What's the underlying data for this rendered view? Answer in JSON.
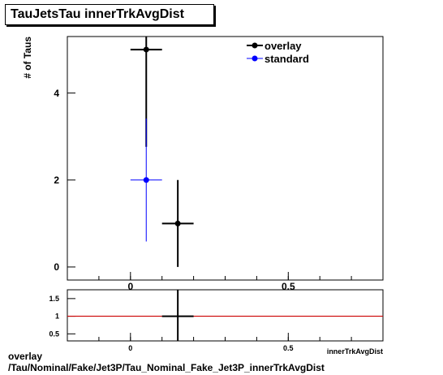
{
  "title": "TauJetsTau innerTrkAvgDist",
  "footer": {
    "line1": "overlay",
    "line2": "/Tau/Nominal/Fake/Jet3P/Tau_Nominal_Fake_Jet3P_innerTrkAvgDist"
  },
  "colors": {
    "overlay": "#000000",
    "standard": "#0000ff",
    "ratio_line": "#cc0000"
  },
  "chart_data": [
    {
      "type": "scatter",
      "title": "TauJetsTau innerTrkAvgDist",
      "xlabel": "innerTrkAvgDist",
      "ylabel": "# of Taus",
      "xlim": [
        -0.2,
        0.8
      ],
      "ylim": [
        -0.3,
        5.3
      ],
      "xticks": [
        {
          "v": 0,
          "label": "0"
        },
        {
          "v": 0.5,
          "label": "0.5"
        }
      ],
      "yticks": [
        {
          "v": 0,
          "label": "0"
        },
        {
          "v": 2,
          "label": "2"
        },
        {
          "v": 4,
          "label": "4"
        }
      ],
      "legend_placement": "top-right",
      "grid": false,
      "series": [
        {
          "name": "overlay",
          "color": "#000000",
          "points": [
            {
              "x": 0.05,
              "y": 5,
              "xerr": 0.05,
              "yerr": 2.236
            },
            {
              "x": 0.15,
              "y": 1,
              "xerr": 0.05,
              "yerr": 1.0
            }
          ]
        },
        {
          "name": "standard",
          "color": "#0000ff",
          "points": [
            {
              "x": 0.05,
              "y": 2,
              "xerr": 0.05,
              "yerr": 1.414
            }
          ]
        }
      ]
    },
    {
      "type": "scatter",
      "title": "",
      "xlabel": "innerTrkAvgDist",
      "ylabel": "",
      "xlim": [
        -0.2,
        0.8
      ],
      "ylim": [
        0.3,
        1.75
      ],
      "xticks": [
        {
          "v": 0,
          "label": "0"
        },
        {
          "v": 0.5,
          "label": "0.5"
        }
      ],
      "yticks": [
        {
          "v": 0.5,
          "label": "0.5"
        },
        {
          "v": 1,
          "label": "1"
        },
        {
          "v": 1.5,
          "label": "1.5"
        }
      ],
      "reference_line": 1,
      "series": [
        {
          "name": "",
          "color": "#000000",
          "points": [
            {
              "x": 0.15,
              "y": 1,
              "xerr": 0.05,
              "yerr": 2.0
            }
          ]
        }
      ]
    }
  ]
}
